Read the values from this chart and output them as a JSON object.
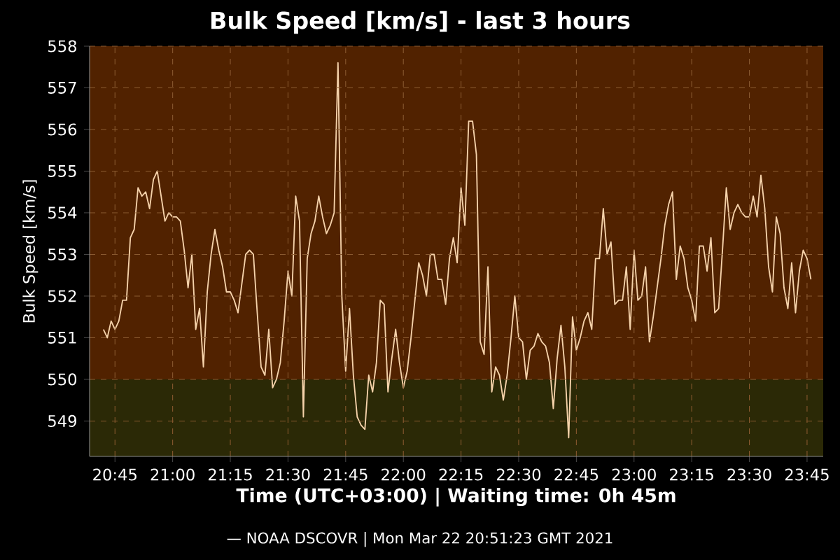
{
  "chart_data": {
    "type": "line",
    "title": "Bulk Speed [km/s] - last 3 hours",
    "xlabel": "Time (UTC+03:00) | Waiting time: 0h 45m",
    "ylabel": "Bulk Speed [km/s]",
    "annotations": [
      "— NOAA DSCOVR | Mon Mar 22 20:51:23 GMT 2021"
    ],
    "color": "#f5d2aa",
    "x": [
      20.7,
      20.7167,
      20.7333,
      20.75,
      20.7667,
      20.7833,
      20.8,
      20.8167,
      20.8333,
      20.85,
      20.8667,
      20.8833,
      20.9,
      20.9167,
      20.9333,
      20.95,
      20.9667,
      20.9833,
      21.0,
      21.0167,
      21.0333,
      21.05,
      21.0667,
      21.0833,
      21.1,
      21.1167,
      21.1333,
      21.15,
      21.1667,
      21.1833,
      21.2,
      21.2167,
      21.2333,
      21.25,
      21.2667,
      21.2833,
      21.3,
      21.3167,
      21.3333,
      21.35,
      21.3667,
      21.3833,
      21.4,
      21.4167,
      21.4333,
      21.45,
      21.4667,
      21.4833,
      21.5,
      21.5167,
      21.5333,
      21.55,
      21.5667,
      21.5833,
      21.6,
      21.6167,
      21.6333,
      21.65,
      21.6667,
      21.6833,
      21.7,
      21.7167,
      21.7333,
      21.75,
      21.7667,
      21.7833,
      21.8,
      21.8167,
      21.8333,
      21.85,
      21.8667,
      21.8833,
      21.9,
      21.9167,
      21.9333,
      21.95,
      21.9667,
      21.9833,
      22.0,
      22.0167,
      22.0333,
      22.05,
      22.0667,
      22.0833,
      22.1,
      22.1167,
      22.1333,
      22.15,
      22.1667,
      22.1833,
      22.2,
      22.2167,
      22.2333,
      22.25,
      22.2667,
      22.2833,
      22.3,
      22.3167,
      22.3333,
      22.35,
      22.3667,
      22.3833,
      22.4,
      22.4167,
      22.4333,
      22.45,
      22.4667,
      22.4833,
      22.5,
      22.5167,
      22.5333,
      22.55,
      22.5667,
      22.5833,
      22.6,
      22.6167,
      22.6333,
      22.65,
      22.6667,
      22.6833,
      22.7,
      22.7167,
      22.7333,
      22.75,
      22.7667,
      22.7833,
      22.8,
      22.8167,
      22.8333,
      22.85,
      22.8667,
      22.8833,
      22.9,
      22.9167,
      22.9333,
      22.95,
      22.9667,
      22.9833,
      23.0,
      23.0167,
      23.0333,
      23.05,
      23.0667,
      23.0833,
      23.1,
      23.1167,
      23.1333,
      23.15,
      23.1667,
      23.1833,
      23.2,
      23.2167,
      23.2333,
      23.25,
      23.2667,
      23.2833,
      23.3,
      23.3167,
      23.3333,
      23.35,
      23.3667,
      23.3833,
      23.4,
      23.4167,
      23.4333,
      23.45,
      23.4667,
      23.4833,
      23.5,
      23.5167,
      23.5333,
      23.55,
      23.5667,
      23.5833,
      23.6,
      23.6167,
      23.6333,
      23.65,
      23.6667,
      23.6833,
      23.7,
      23.7167,
      23.7333,
      23.75,
      23.7667
    ],
    "values": [
      551.2,
      551.0,
      551.4,
      551.2,
      551.4,
      551.9,
      551.9,
      553.4,
      553.6,
      554.6,
      554.4,
      554.5,
      554.1,
      554.8,
      555.0,
      554.4,
      553.8,
      554.0,
      553.9,
      553.9,
      553.8,
      553.1,
      552.2,
      553.0,
      551.2,
      551.7,
      550.3,
      552.1,
      553.0,
      553.6,
      553.1,
      552.7,
      552.1,
      552.1,
      551.9,
      551.6,
      552.3,
      553.0,
      553.1,
      553.0,
      551.6,
      550.3,
      550.1,
      551.2,
      549.8,
      550.0,
      550.4,
      551.4,
      552.6,
      552.0,
      554.4,
      553.8,
      549.1,
      552.9,
      553.5,
      553.8,
      554.4,
      553.9,
      553.5,
      553.7,
      554.0,
      557.6,
      552.0,
      550.2,
      551.7,
      550.1,
      549.1,
      548.9,
      548.8,
      550.1,
      549.7,
      550.4,
      551.9,
      551.8,
      549.7,
      550.5,
      551.2,
      550.4,
      549.8,
      550.2,
      551.0,
      551.9,
      552.8,
      552.5,
      552.0,
      553.0,
      553.0,
      552.4,
      552.4,
      551.8,
      552.9,
      553.4,
      552.8,
      554.6,
      553.7,
      556.2,
      556.2,
      555.4,
      550.9,
      550.6,
      552.7,
      549.7,
      550.3,
      550.1,
      549.5,
      550.1,
      551.0,
      552.0,
      551.0,
      550.9,
      550.0,
      550.7,
      550.8,
      551.1,
      550.9,
      550.8,
      550.4,
      549.3,
      550.5,
      551.3,
      550.3,
      548.6,
      551.5,
      550.7,
      551.0,
      551.4,
      551.6,
      551.2,
      552.9,
      552.9,
      554.1,
      553.0,
      553.3,
      551.8,
      551.9,
      551.9,
      552.7,
      551.2,
      553.1,
      551.9,
      552.0,
      552.7,
      550.9,
      551.5,
      552.2,
      552.9,
      553.7,
      554.2,
      554.5,
      552.4,
      553.2,
      552.9,
      552.2,
      551.9,
      551.4,
      553.2,
      553.2,
      552.6,
      553.4,
      551.6,
      551.7,
      553.1,
      554.6,
      553.6,
      554.0,
      554.2,
      554.0,
      553.9,
      553.9,
      554.4,
      553.9,
      554.9,
      554.1,
      552.7,
      552.1,
      553.9,
      553.5,
      552.2,
      551.7,
      552.8,
      551.6,
      552.6,
      553.1,
      552.9,
      552.4
    ],
    "xlim": [
      20.64,
      23.82
    ],
    "ylim": [
      548.15,
      558
    ],
    "xticks": [
      {
        "value": 20.75,
        "label": "20:45"
      },
      {
        "value": 21.0,
        "label": "21:00"
      },
      {
        "value": 21.25,
        "label": "21:15"
      },
      {
        "value": 21.5,
        "label": "21:30"
      },
      {
        "value": 21.75,
        "label": "21:45"
      },
      {
        "value": 22.0,
        "label": "22:00"
      },
      {
        "value": 22.25,
        "label": "22:15"
      },
      {
        "value": 22.5,
        "label": "22:30"
      },
      {
        "value": 22.75,
        "label": "22:45"
      },
      {
        "value": 23.0,
        "label": "23:00"
      },
      {
        "value": 23.25,
        "label": "23:15"
      },
      {
        "value": 23.5,
        "label": "23:30"
      },
      {
        "value": 23.75,
        "label": "23:45"
      }
    ],
    "yticks": [
      549,
      550,
      551,
      552,
      553,
      554,
      555,
      556,
      557,
      558
    ],
    "grid": true,
    "bands": [
      {
        "axis": "y",
        "from": 550,
        "to": 558,
        "color": "#512200"
      },
      {
        "axis": "y",
        "from": 548.15,
        "to": 550,
        "color": "#2b2906"
      }
    ]
  }
}
